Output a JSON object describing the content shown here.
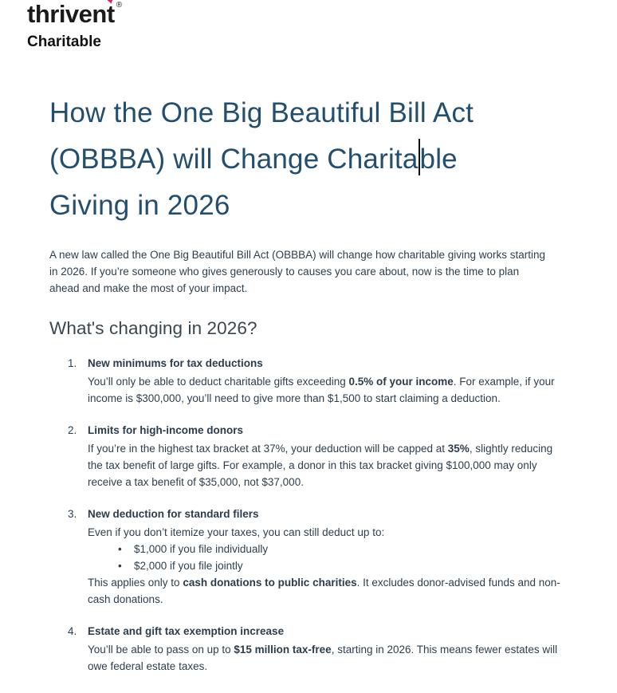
{
  "brand": {
    "name_pre": "thriven",
    "name_last": "t",
    "heart_icon": "♥",
    "registered": "®",
    "division": "Charitable",
    "logo_color": "#1b1b1b",
    "heart_color": "#ed1650"
  },
  "title": {
    "line1": "How the One Big Beautiful Bill Act",
    "line2_before_caret": "(OBBBA) will Change Charita",
    "line2_after_caret": "ble",
    "line3": "Giving in 2026",
    "color": "#234e6d"
  },
  "intro": "A new law called the One Big Beautiful Bill Act (OBBBA) will change how charitable giving works starting in 2026. If you’re someone who gives generously to causes you care about, now is the time to plan ahead and make the most of your impact.",
  "section": {
    "heading": "What's changing in 2026?",
    "bullet_char": "•",
    "items": [
      {
        "number": "1.",
        "title": "New minimums for tax deductions",
        "body": [
          {
            "text": "You’ll only be able to deduct charitable gifts exceeding "
          },
          {
            "text": "0.5% of your income",
            "bold": true
          },
          {
            "text": ". For example, if your income is $300,000, you’ll need to give more than $1,500 to start claiming a deduction."
          }
        ]
      },
      {
        "number": "2.",
        "title": "Limits for high-income donors",
        "body": [
          {
            "text": "If you’re in the highest tax bracket at 37%, your deduction will be capped at "
          },
          {
            "text": "35%",
            "bold": true
          },
          {
            "text": ", slightly reducing the tax benefit of large gifts. For example, a donor in this tax bracket giving $100,000 may only receive a tax benefit of $35,000, not $37,000."
          }
        ]
      },
      {
        "number": "3.",
        "title": "New deduction for standard filers",
        "body": [
          {
            "text": "Even if you don’t itemize your taxes, you can still deduct up to:"
          }
        ],
        "bullets": [
          "$1,000 if you file individually",
          "$2,000 if you file jointly"
        ],
        "after": [
          {
            "text": "This applies only to "
          },
          {
            "text": "cash donations to public charities",
            "bold": true
          },
          {
            "text": ". It excludes donor-advised funds and non-cash donations."
          }
        ]
      },
      {
        "number": "4.",
        "title": "Estate and gift tax exemption increase",
        "body": [
          {
            "text": "You’ll be able to pass on up to "
          },
          {
            "text": "$15 million tax-free",
            "bold": true
          },
          {
            "text": ", starting in 2026. This means fewer estates will owe federal estate taxes."
          }
        ]
      }
    ]
  }
}
